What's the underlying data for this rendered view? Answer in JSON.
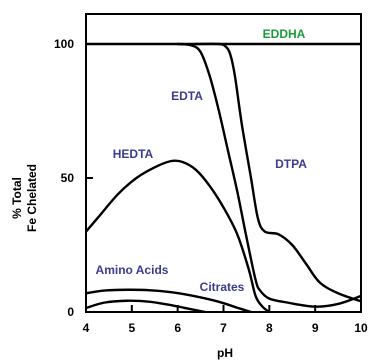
{
  "chart_data": {
    "type": "line",
    "xlabel": "pH",
    "ylabel_lines": [
      "% Total",
      "Fe Chelated"
    ],
    "xlim": [
      4,
      10
    ],
    "ylim": [
      0,
      100
    ],
    "x_ticks": [
      4,
      5,
      6,
      7,
      8,
      9,
      10
    ],
    "y_ticks": [
      0,
      50,
      100
    ],
    "grid": false,
    "legend": "none (curves labeled directly)",
    "series": [
      {
        "name": "EDDHA",
        "label_color": "#1a9a3a",
        "points": [
          [
            4,
            100
          ],
          [
            10,
            100
          ]
        ]
      },
      {
        "name": "EDTA",
        "label_color": "#3b3b8f",
        "points": [
          [
            6.0,
            100
          ],
          [
            6.3,
            99.5
          ],
          [
            6.5,
            97
          ],
          [
            6.7,
            88
          ],
          [
            6.9,
            75
          ],
          [
            7.1,
            60
          ],
          [
            7.3,
            45
          ],
          [
            7.5,
            28
          ],
          [
            7.7,
            12
          ],
          [
            7.8,
            8
          ],
          [
            8.0,
            5
          ],
          [
            8.4,
            3.5
          ],
          [
            9.0,
            2
          ],
          [
            9.5,
            3
          ],
          [
            10,
            6
          ]
        ]
      },
      {
        "name": "DTPA",
        "label_color": "#3b3b8f",
        "points": [
          [
            6.4,
            100
          ],
          [
            6.9,
            100
          ],
          [
            7.05,
            99
          ],
          [
            7.15,
            96
          ],
          [
            7.25,
            88
          ],
          [
            7.4,
            70
          ],
          [
            7.6,
            50
          ],
          [
            7.75,
            35
          ],
          [
            7.9,
            30
          ],
          [
            8.2,
            29
          ],
          [
            8.5,
            25
          ],
          [
            8.8,
            18
          ],
          [
            9.1,
            11
          ],
          [
            9.5,
            7
          ],
          [
            10,
            4
          ]
        ]
      },
      {
        "name": "HEDTA",
        "label_color": "#3b3b8f",
        "points": [
          [
            4.0,
            30
          ],
          [
            4.3,
            36
          ],
          [
            4.7,
            44
          ],
          [
            5.1,
            50
          ],
          [
            5.5,
            54
          ],
          [
            5.85,
            56.3
          ],
          [
            6.1,
            56
          ],
          [
            6.4,
            53
          ],
          [
            6.7,
            47
          ],
          [
            7.0,
            39
          ],
          [
            7.3,
            29
          ],
          [
            7.55,
            16
          ],
          [
            7.7,
            6
          ],
          [
            7.85,
            2
          ],
          [
            8.0,
            0
          ]
        ]
      },
      {
        "name": "Amino Acids",
        "label_color": "#3b3b8f",
        "points": [
          [
            4.0,
            7
          ],
          [
            4.4,
            8
          ],
          [
            4.9,
            8.3
          ],
          [
            5.4,
            8.1
          ],
          [
            5.9,
            7.3
          ],
          [
            6.4,
            5.8
          ],
          [
            6.9,
            3.8
          ],
          [
            7.3,
            1.6
          ],
          [
            7.6,
            0
          ]
        ]
      },
      {
        "name": "Citrates",
        "label_color": "#3b3b8f",
        "points": [
          [
            4.0,
            1.5
          ],
          [
            4.4,
            3.5
          ],
          [
            4.9,
            4.2
          ],
          [
            5.4,
            3.8
          ],
          [
            5.9,
            2.4
          ],
          [
            6.3,
            1.0
          ],
          [
            6.6,
            0
          ]
        ]
      }
    ]
  }
}
